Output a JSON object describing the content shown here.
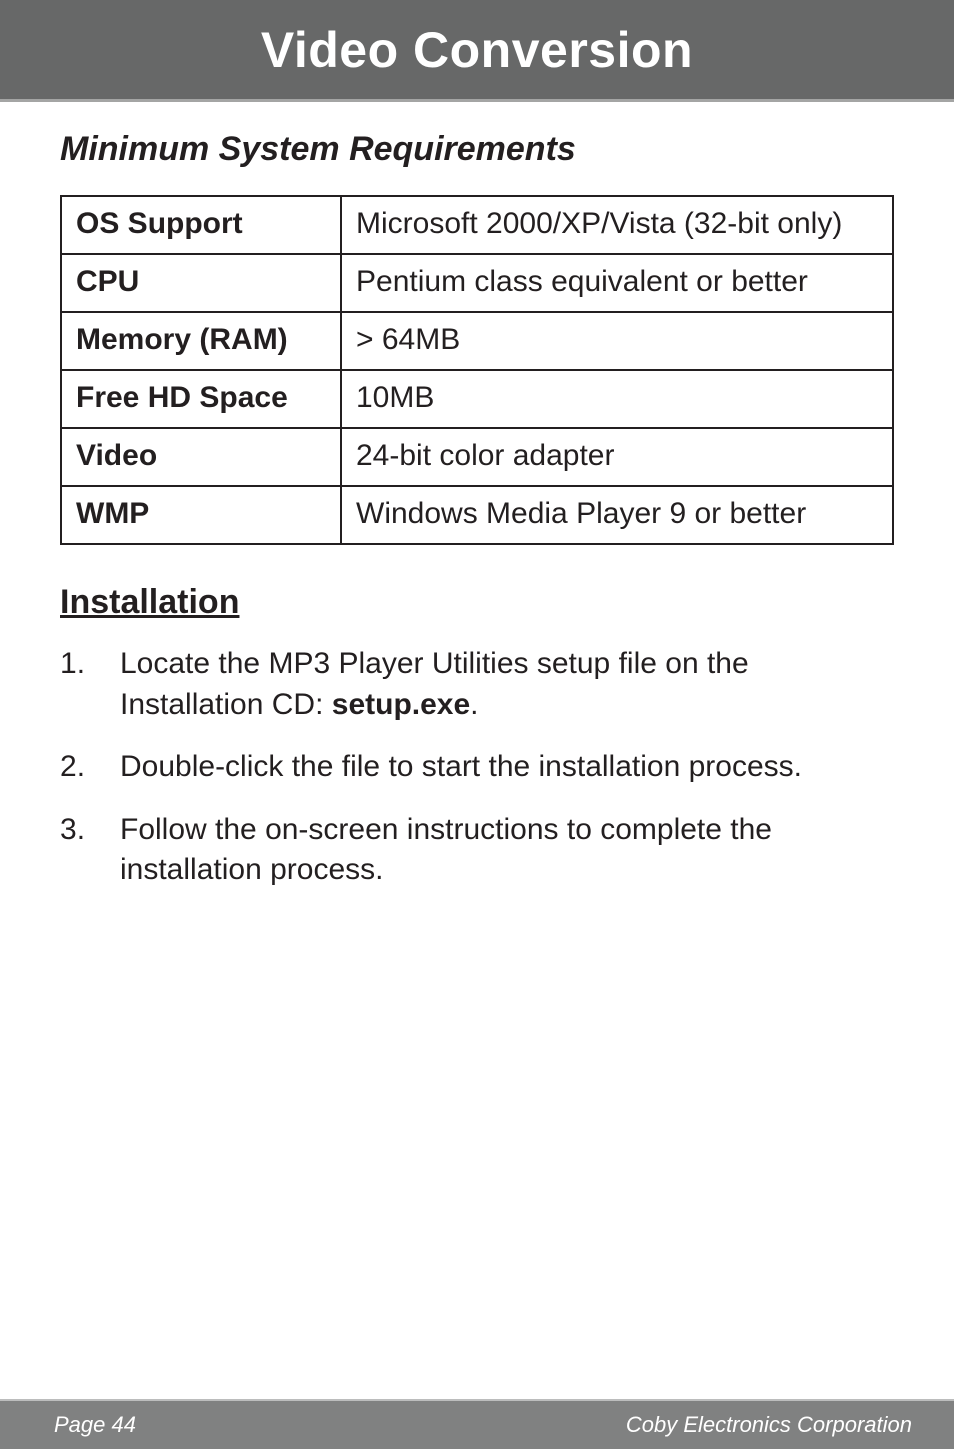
{
  "header": {
    "title": "Video Conversion"
  },
  "section": {
    "subhead": "Minimum System Requirements",
    "table": {
      "rows": [
        {
          "label": "OS Support",
          "value": "Microsoft 2000/XP/Vista (32-bit only)"
        },
        {
          "label": "CPU",
          "value": "Pentium class equivalent or better"
        },
        {
          "label": "Memory (RAM)",
          "value": "> 64MB"
        },
        {
          "label": "Free HD Space",
          "value": "10MB"
        },
        {
          "label": "Video",
          "value": "24-bit color adapter"
        },
        {
          "label": "WMP",
          "value": "Windows Media Player 9 or better"
        }
      ]
    }
  },
  "installation": {
    "heading": "Installation",
    "steps": [
      {
        "pre": "Locate the MP3 Player Utilities setup file on the Installation CD:  ",
        "bold": "setup.exe",
        "post": "."
      },
      {
        "pre": "Double-click the file to start the installation process.",
        "bold": "",
        "post": ""
      },
      {
        "pre": "Follow the on-screen instructions to complete the installation process.",
        "bold": "",
        "post": ""
      }
    ]
  },
  "footer": {
    "left": "Page 44",
    "right": "Coby Electronics Corporation"
  }
}
